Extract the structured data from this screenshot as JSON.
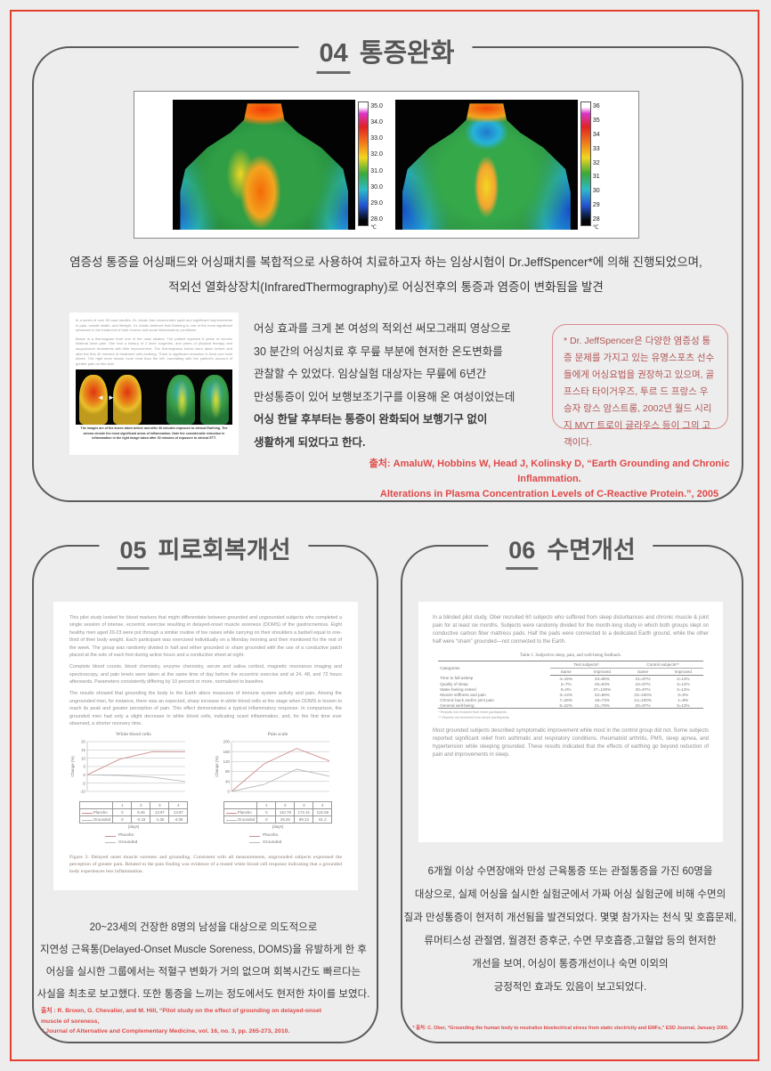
{
  "page": {
    "bg_color": "#ededed",
    "frame_color": "#e5402d",
    "accent_red": "#e04848",
    "box_border": "#5c5c5c"
  },
  "section_pain": {
    "number": "04",
    "title": "통증완화",
    "thermography": {
      "left_scale_labels": [
        "35.0",
        "34.0",
        "33.0",
        "32.0",
        "31.0",
        "30.0",
        "29.0",
        "28.0"
      ],
      "right_scale_labels": [
        "36",
        "35",
        "34",
        "33",
        "32",
        "31",
        "30",
        "29",
        "28"
      ],
      "scale_unit": "℃"
    },
    "intro_lines": [
      "염증성 통증을 어싱패드와 어싱패치를 복합적으로 사용하여 치료하고자 하는 임상시험이 Dr.JeffSpencer*에 의해 진행되었으며,",
      "적외선 열화상장치(InfraredThermography)로 어싱전후의 통증과 염증이 변화됨을 발견"
    ],
    "case_doc": {
      "paragraphs": [
        "In a series of over 50 case studies, Dr. Amalu has documented rapid and significant improvements in pain, overall health, and lifestyle. Dr. Amalu believes that Earthing is one of the most significant advances in the treatment of both chronic and acute inflammatory conditions.",
        "Below is a thermogram from one of the case studies. The patient reported 6 years of chronic bilateral knee pain. She had a history of 2 knee surgeries, and years of physical therapy and acupuncture treatments with little improvement. The thermograms below were taken before and after the first 30 minutes of treatment with earthing. There is significant reduction in heat over both knees. The right knee shows more heat than the left, correlating with the patient's account of greater pain on this side."
      ],
      "arrow_left": "◄",
      "arrow_right": "►",
      "caption": "The images are of the knees taken before and after 30 minutes exposure to clinical Earthing. The arrows denote the most significant areas of inflammation. Note the considerable reduction in inflammation in the right image taken after 30 minutes of exposure to clinical ETT."
    },
    "case_text_lines": [
      "어싱 효과를 크게 본 여성의 적외선 써모그래피 영상으로",
      "30 분간의 어싱치료 후 무릎 부분에 현저한 온도변화를",
      "관찰할 수 있었다. 임상실험 대상자는 무릎에 6년간",
      "만성통증이 있어 보행보조기구를 이용해 온 여성이었는데"
    ],
    "case_text_bold_lines": [
      "어싱 한달 후부터는 통증이 완화되어 보행기구 없이",
      "생활하게 되었다고 한다."
    ],
    "note_box_text": "* Dr. JeffSpencer은 다양한 염증성 통증 문제를 가지고 있는 유명스포츠 선수들에게 어싱요법을 권장하고 있으며, 골프스타 타이거우즈, 투르 드 프랑스 우승자 랑스 암스트롱, 2002년 월드 시리지 MVT 트로이 글라우스 등이 그의 고객이다.",
    "source_lines": [
      "출처: AmaluW, Hobbins W, Head J, Kolinsky D, “Earth Grounding and Chronic Inflammation.",
      "Alterations in Plasma Concentration Levels of C-Reactive Protein.”, 2005"
    ]
  },
  "section_fatigue": {
    "number": "05",
    "title": "피로회복개선",
    "paper": {
      "paragraphs": [
        "This pilot study looked for blood markers that might differentiate between grounded and ungrounded subjects who completed a single session of intense, eccentric exercise resulting in delayed-onset muscle soreness (DOMS) of the gastrocnemius.  Eight healthy men aged 20-23 were put through a similar routine of toe raises while carrying on their shoulders a barbell equal to one-third of their body weight. Each participant was exercised individually on a Monday morning and then monitored for the rest of the week. The group was randomly divided in half and either grounded or sham grounded with the use of a conductive patch placed at the sole of each foot during active hours and a conductive sheet at night.",
        "Complete blood counts, blood chemistry, enzyme chemistry, serum and saliva cortisol, magnetic resonance imaging and spectroscopy, and pain levels were taken at the same time of day before the eccentric exercise and at 24, 48, and 72 hours afterwards. Parameters consistently differing by 10 percent or more, normalized to baseline.",
        "The results showed that grounding the body to the Earth alters measures of immune system activity and pain. Among the ungrounded men, for instance, there was an expected, sharp increase in white blood cells at the stage when DOMS is known to reach its peak and greater perception of pain. This effect demonstrates a typical inflammatory response. In comparison, the grounded men had only a slight decrease in white blood cells, indicating scant inflammation, and, for the first time ever observed, a shorter recovery time."
      ],
      "charts": [
        {
          "type": "line",
          "title": "White blood cells",
          "ylabel": "Change (%)",
          "ymin": -10,
          "ymax": 20,
          "yticks": [
            20,
            15,
            10,
            5,
            0,
            -5,
            -10
          ],
          "days": [
            "1",
            "2",
            "3",
            "4"
          ],
          "xlabel": "(days)",
          "series": [
            {
              "name": "Placebo",
              "values": [
                0,
                9.46,
                13.97,
                13.87
              ]
            },
            {
              "name": "Grounded",
              "values": [
                0,
                -0.43,
                -1.36,
                -4.05
              ]
            }
          ]
        },
        {
          "type": "line",
          "title": "Pain scale",
          "ylabel": "Change (%)",
          "ymin": 0,
          "ymax": 200,
          "yticks": [
            200,
            160,
            120,
            80,
            40,
            0
          ],
          "days": [
            "1",
            "2",
            "3",
            "4"
          ],
          "xlabel": "(days)",
          "series": [
            {
              "name": "Placebo",
              "values": [
                0,
                110.79,
                172.41,
                122.59
              ]
            },
            {
              "name": "Grounded",
              "values": [
                0,
                28.26,
                89.13,
                61.2
              ]
            }
          ]
        }
      ],
      "figure_caption": "Figure 3: Delayed onset muscle soreness and grounding. Consistent with all measurements, ungrounded subjects expressed the perception of greater pain. Related to the pain finding was evidence of a muted white blood cell response indicating that a grounded body experiences less inflammation."
    },
    "summary_lines": [
      "20~23세의 건장한 8명의 남성을 대상으로  의도적으로",
      "지연성 근육통(Delayed-Onset Muscle Soreness, DOMS)을 유발하게 한 후",
      "어싱을 실시한 그룹에서는 적혈구 변화가 거의 없으며 회복시간도 빠르다는",
      "사실을 최초로 보고했다. 또한 통증을 느끼는 정도에서도 현저한 차이를 보였다."
    ],
    "source_lines": [
      "출처 : R. Brown, G. Chevalier, and M. Hill, “Pilot study on the effect of grounding on delayed-onset muscle of soreness,",
      "” Journal of Alternative and Complementary Medicine, vol. 16, no. 3, pp. 265-273, 2010."
    ]
  },
  "section_sleep": {
    "number": "06",
    "title": "수면개선",
    "paper": {
      "paragraph_top": "In a blinded pilot study, Ober recruited 60 subjects who suffered from sleep disturbances and chronic muscle & joint pain for at least six months. Subjects were randomly divided for the month-long study in which both groups slept on conductive carbon fiber mattress pads. Half the pads were connected to a dedicated Earth ground, while the other half were “sham” grounded—not connected to the Earth.",
      "table": {
        "title": "Table 1. Subjective sleep, pain, and well-being feedback.",
        "col_category": "Categories",
        "group_headers": [
          "Test subjects*",
          "Control subjects**"
        ],
        "sub_headers": [
          "Same",
          "Improved",
          "Same",
          "Improved"
        ],
        "rows": [
          [
            "Time to fall asleep",
            "4=15%",
            "23=85%",
            "21=87%",
            "3=13%"
          ],
          [
            "Quality of sleep",
            "2=7%",
            "25=93%",
            "23=87%",
            "3=13%"
          ],
          [
            "Wake feeling rested",
            "0=0%",
            "27=100%",
            "20=87%",
            "3=13%"
          ],
          [
            "Muscle stiffness and pain",
            "3=14%",
            "22=86%",
            "23=100%",
            "0=0%"
          ],
          [
            "Chronic back and/or joint pain",
            "7=26%",
            "18=74%",
            "21=100%",
            "1=8%"
          ],
          [
            "General well-being",
            "6=22%",
            "21=78%",
            "20=87%",
            "3=13%"
          ]
        ],
        "footnotes": [
          "* Reports not received from three participants.",
          "** Reports not received from seven participants."
        ]
      },
      "paragraph_bottom": "Most grounded subjects described symptomatic improvement while most in the control group did not. Some subjects reported significant relief from asthmatic and respiratory conditions, rheumatoid arthritis, PMS, sleep apnea, and hypertension while sleeping grounded. These results indicated that the effects of earthing go beyond reduction of pain and improvements in sleep."
    },
    "summary_lines": [
      "6개월 이상 수면장애와 만성 근육통증 또는 관절통증을 가진 60명을",
      "대상으로, 실제 어싱을 실시한 실험군에서 가짜 어싱 실험군에 비해 수면의",
      "질과 만성통증이 현저히 개선됨을 발견되었다. 몇몇 참가자는 천식 및 호흡문제,",
      "류머티스성 관절염, 월경전 증후군, 수면 무호흡증,고혈압 등의 현저한",
      "개선을 보여, 어싱이 통증개선이나 숙면 이외의",
      "긍정적인 효과도 있음이 보고되었다."
    ],
    "source_line": "* 출처: C. Ober, “Grounding the human body to neutralize bioelectrical stress  from static electricity and EMFs,” ESD Journal, January 2000."
  }
}
